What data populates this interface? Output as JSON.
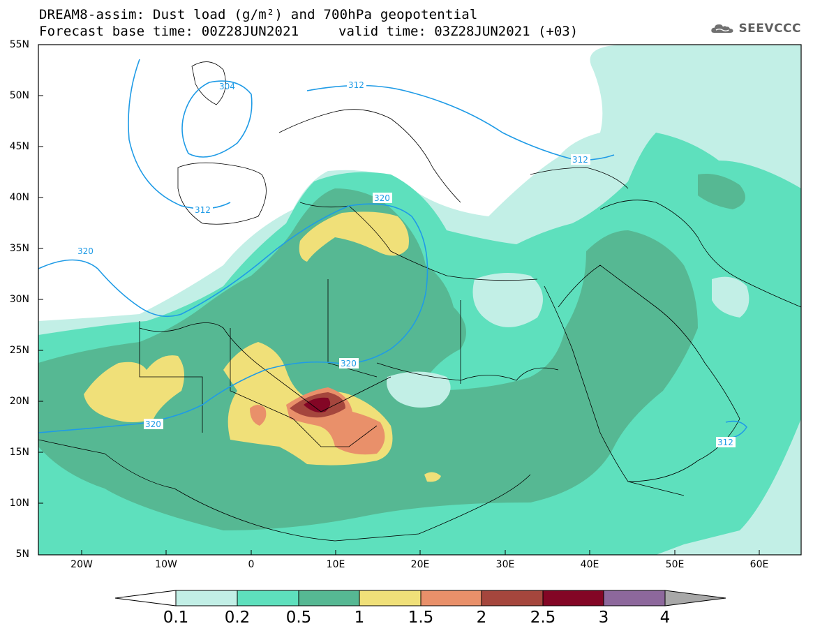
{
  "header": {
    "title_line1": "DREAM8-assim: Dust load (g/m²) and 700hPa geopotential",
    "title_line2": "Forecast base time: 00Z28JUN2021",
    "valid_time": "valid time: 03Z28JUN2021 (+03)",
    "brand": "SEEVCCC"
  },
  "axes": {
    "lat_labels": [
      "55N",
      "50N",
      "45N",
      "40N",
      "35N",
      "30N",
      "25N",
      "20N",
      "15N",
      "10N",
      "5N"
    ],
    "lon_labels": [
      "20W",
      "10W",
      "0",
      "10E",
      "20E",
      "30E",
      "40E",
      "50E",
      "60E"
    ]
  },
  "contour_labels": {
    "c304": "304",
    "c312a": "312",
    "c312b": "312",
    "c312c": "312",
    "c312d": "312",
    "c320a": "320",
    "c320b": "320",
    "c320c": "320",
    "c320d": "320"
  },
  "colorbar": {
    "labels": [
      "0.1",
      "0.2",
      "0.5",
      "1",
      "1.5",
      "2",
      "2.5",
      "3",
      "4"
    ],
    "colors": [
      "#c2efe6",
      "#5ee0bd",
      "#56b893",
      "#f0e079",
      "#e9906a",
      "#a5463d",
      "#830625",
      "#8d689c",
      "#a8a8a8"
    ]
  },
  "palette": {
    "light": "#c2efe6",
    "mid": "#5ee0bd",
    "dark": "#56b893",
    "yellow": "#f0e079",
    "orange": "#e9906a",
    "brown": "#a5463d",
    "maroon": "#830625",
    "contour": "#1f9be6"
  }
}
